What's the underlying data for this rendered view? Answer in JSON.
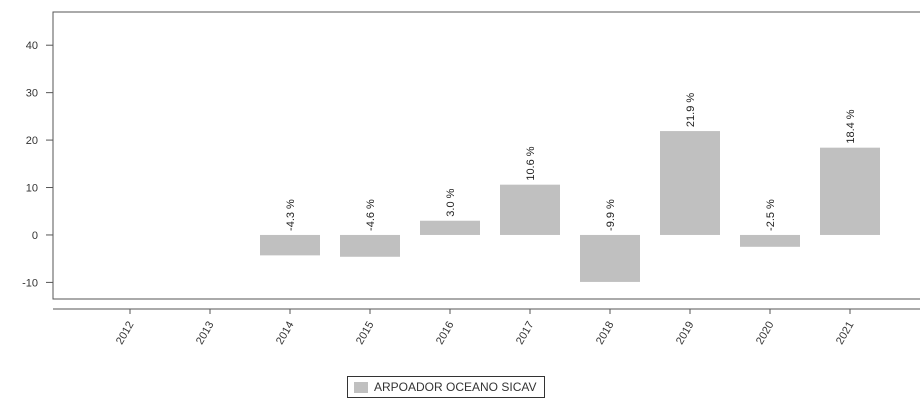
{
  "chart_data": {
    "type": "bar",
    "categories": [
      "2012",
      "2013",
      "2014",
      "2015",
      "2016",
      "2017",
      "2018",
      "2019",
      "2020",
      "2021"
    ],
    "series": [
      {
        "name": "ARPOADOR OCEANO SICAV",
        "color": "#c0c0c0",
        "values": [
          null,
          null,
          -4.3,
          -4.6,
          3.0,
          10.6,
          -9.9,
          21.9,
          -2.5,
          18.4
        ],
        "labels": [
          "",
          "",
          "-4.3 %",
          "-4.6 %",
          "3.0 %",
          "10.6 %",
          "-9.9 %",
          "21.9 %",
          "-2.5 %",
          "18.4 %"
        ]
      }
    ],
    "y_ticks": [
      -10,
      0,
      10,
      20,
      30,
      40
    ],
    "y_tick_labels": [
      "-10",
      "0",
      "10",
      "20",
      "30",
      "40"
    ],
    "ylim": [
      -13.5,
      47
    ],
    "legend_position": "bottom-center",
    "grid": false
  }
}
